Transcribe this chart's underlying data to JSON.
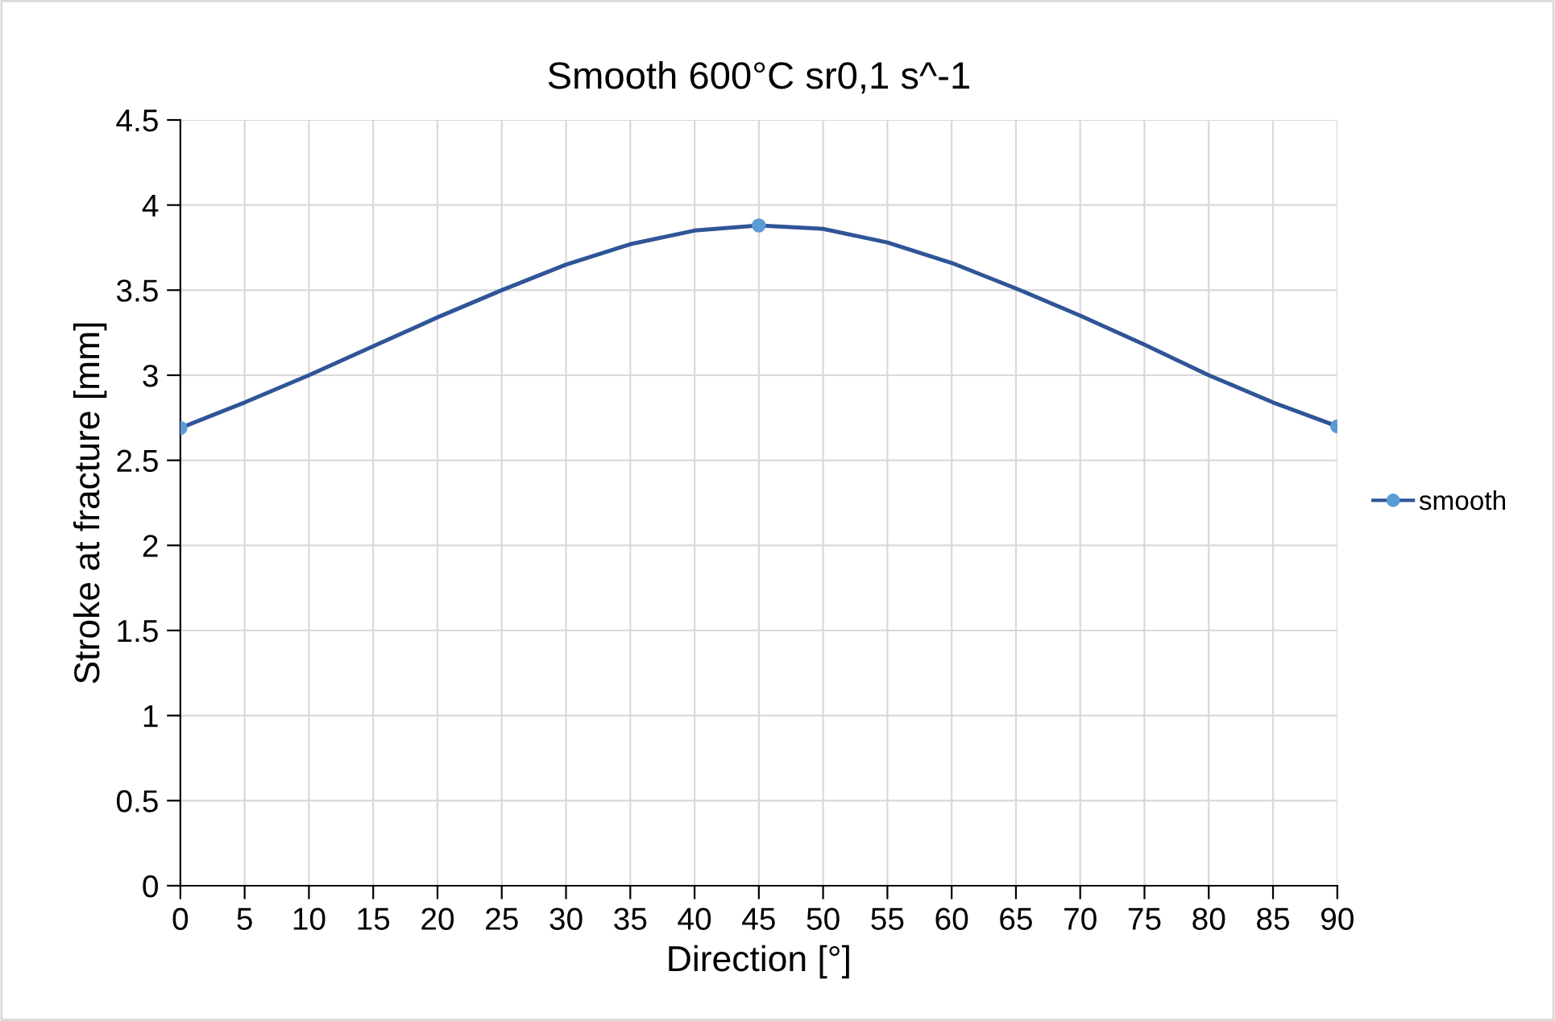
{
  "chart_data": {
    "type": "line",
    "title": "Smooth 600°C sr0,1 s^-1",
    "xlabel": "Direction [°]",
    "ylabel": "Stroke at fracture [mm]",
    "x": [
      0,
      5,
      10,
      15,
      20,
      25,
      30,
      35,
      40,
      45,
      50,
      55,
      60,
      65,
      70,
      75,
      80,
      85,
      90
    ],
    "series": [
      {
        "name": "smooth",
        "color": "#2f5597",
        "values": [
          2.69,
          2.84,
          3.0,
          3.17,
          3.34,
          3.5,
          3.65,
          3.77,
          3.85,
          3.88,
          3.86,
          3.78,
          3.66,
          3.51,
          3.35,
          3.18,
          3.0,
          2.84,
          2.7
        ]
      },
      {
        "type": "scatter",
        "marker": "circle",
        "color": "#5b9bd5",
        "x": [
          0,
          45,
          90
        ],
        "values": [
          2.69,
          3.88,
          2.7
        ]
      }
    ],
    "xlim": [
      0,
      90
    ],
    "xticks": [
      0,
      5,
      10,
      15,
      20,
      25,
      30,
      35,
      40,
      45,
      50,
      55,
      60,
      65,
      70,
      75,
      80,
      85,
      90
    ],
    "ylim": [
      0,
      4.5
    ],
    "yticks": [
      0,
      0.5,
      1,
      1.5,
      2,
      2.5,
      3,
      3.5,
      4,
      4.5
    ],
    "grid": true,
    "legend": "right",
    "line_style": "solid"
  }
}
